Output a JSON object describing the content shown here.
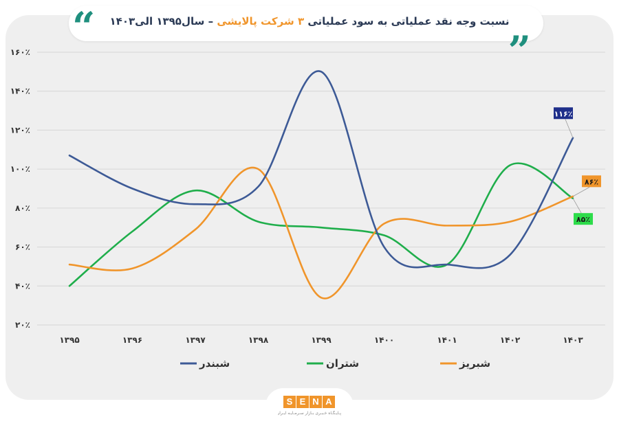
{
  "header": {
    "title_part1": "نسبت وجه نقد عملیاتی به سود عملیاتی",
    "title_highlight": "۳ شرکت پالایشی",
    "title_part2": "– سال۱۳۹۵ الی۱۴۰۳"
  },
  "logo": {
    "letters": [
      "S",
      "E",
      "N",
      "A"
    ],
    "tagline": "پـایـگـاه خـبـری بـازار سـرمـایـه ایـران"
  },
  "colors": {
    "shabandar": "#3d5a96",
    "shatran": "#1fae4b",
    "shabriz": "#f0952b",
    "title_accent": "#f0952b",
    "quote": "#1f8f7e"
  },
  "chart_data": {
    "type": "line",
    "title": "",
    "xlabel": "",
    "ylabel": "",
    "x": [
      "۱۳۹۵",
      "۱۳۹۶",
      "۱۳۹۷",
      "۱۳۹۸",
      "۱۳۹۹",
      "۱۴۰۰",
      "۱۴۰۱",
      "۱۴۰۲",
      "۱۴۰۳"
    ],
    "y_ticks": [
      20,
      40,
      60,
      80,
      100,
      120,
      140,
      160
    ],
    "y_tick_labels": [
      "۲۰٪",
      "۴۰٪",
      "۶۰٪",
      "۸۰٪",
      "۱۰۰٪",
      "۱۲۰٪",
      "۱۴۰٪",
      "۱۶۰٪"
    ],
    "ylim": [
      20,
      160
    ],
    "grid": "horizontal",
    "legend_placement": "bottom",
    "series": [
      {
        "key": "shabandar",
        "name": "شبندر",
        "values": [
          107,
          90,
          82,
          91,
          150,
          60,
          51,
          56,
          116
        ],
        "end_label": "۱۱۶٪"
      },
      {
        "key": "shatran",
        "name": "شتران",
        "values": [
          40,
          68,
          89,
          73,
          70,
          66,
          51,
          102,
          85
        ],
        "end_label": "۸۵٪"
      },
      {
        "key": "shabriz",
        "name": "شبریز",
        "values": [
          51,
          49,
          69,
          100,
          34,
          72,
          71,
          73,
          86
        ],
        "end_label": "۸۶٪"
      }
    ]
  }
}
